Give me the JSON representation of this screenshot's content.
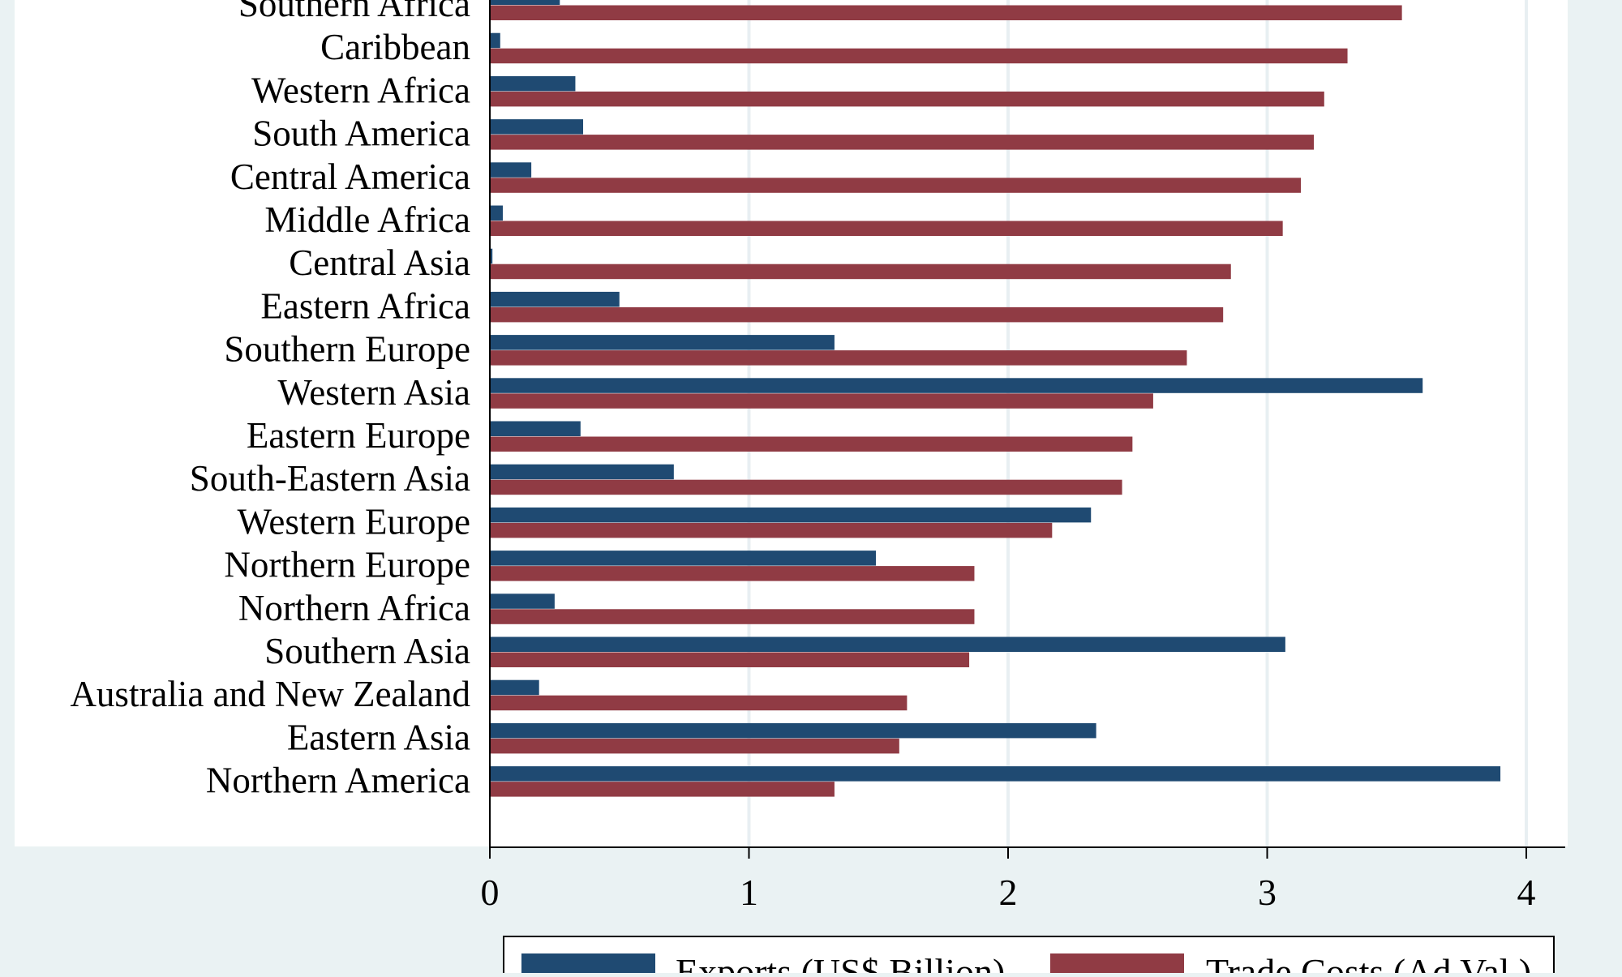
{
  "chart_data": {
    "type": "bar",
    "orientation": "horizontal",
    "categories": [
      "Southern Africa",
      "Caribbean",
      "Western Africa",
      "South America",
      "Central America",
      "Middle Africa",
      "Central Asia",
      "Eastern Africa",
      "Southern Europe",
      "Western Asia",
      "Eastern Europe",
      "South-Eastern Asia",
      "Western Europe",
      "Northern Europe",
      "Northern Africa",
      "Southern Asia",
      "Australia and New Zealand",
      "Eastern Asia",
      "Northern America"
    ],
    "series": [
      {
        "name": "Exports (US$ Billion)",
        "color": "#1f4a72",
        "values": [
          0.27,
          0.04,
          0.33,
          0.36,
          0.16,
          0.05,
          0.01,
          0.5,
          1.33,
          3.6,
          0.35,
          0.71,
          2.32,
          1.49,
          0.25,
          3.07,
          0.19,
          2.34,
          3.9
        ]
      },
      {
        "name": "Trade Costs (Ad Val.)",
        "color": "#903b44",
        "values": [
          3.52,
          3.31,
          3.22,
          3.18,
          3.13,
          3.06,
          2.86,
          2.83,
          2.69,
          2.56,
          2.48,
          2.44,
          2.17,
          1.87,
          1.87,
          1.85,
          1.61,
          1.58,
          1.33
        ]
      }
    ],
    "xlim": [
      0,
      4.15
    ],
    "xticks": [
      0,
      1,
      2,
      3,
      4
    ],
    "xtick_labels": [
      "0",
      "1",
      "2",
      "3",
      "4"
    ],
    "grid": true,
    "legend_position": "bottom"
  }
}
